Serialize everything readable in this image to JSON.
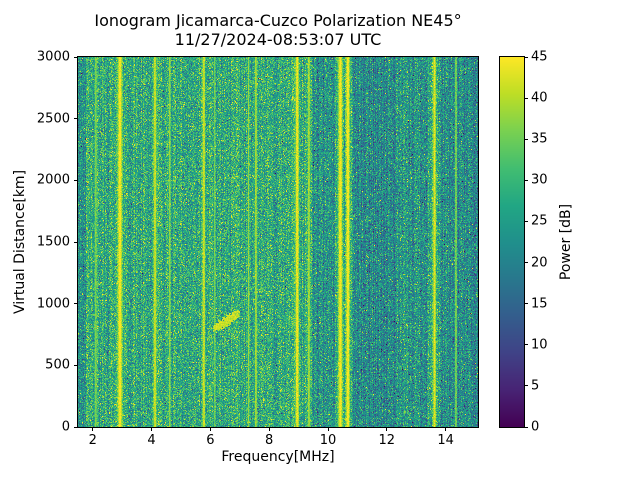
{
  "title": "Ionogram Jicamarca-Cuzco Polarization NE45°",
  "subtitle": "11/27/2024-08:53:07 UTC",
  "chart_data": {
    "type": "heatmap",
    "title": "Ionogram Jicamarca-Cuzco Polarization NE45°",
    "subtitle": "11/27/2024-08:53:07 UTC",
    "xlabel": "Frequency[MHz]",
    "ylabel": "Virtual Distance[km]",
    "colorbar_label": "Power [dB]",
    "xlim": [
      1.5,
      15.1
    ],
    "ylim": [
      0,
      3000
    ],
    "clim": [
      0,
      45
    ],
    "xticks": [
      2,
      4,
      6,
      8,
      10,
      12,
      14
    ],
    "yticks": [
      0,
      500,
      1000,
      1500,
      2000,
      2500,
      3000
    ],
    "colorbar_ticks": [
      0,
      5,
      10,
      15,
      20,
      25,
      30,
      35,
      40,
      45
    ],
    "colormap": "viridis",
    "colormap_rgb": [
      [
        68,
        1,
        84
      ],
      [
        72,
        36,
        117
      ],
      [
        64,
        67,
        135
      ],
      [
        52,
        94,
        141
      ],
      [
        41,
        120,
        142
      ],
      [
        32,
        144,
        140
      ],
      [
        34,
        167,
        132
      ],
      [
        66,
        190,
        113
      ],
      [
        121,
        209,
        81
      ],
      [
        189,
        222,
        38
      ],
      [
        253,
        231,
        37
      ]
    ],
    "noise": {
      "base_mean": 27.5,
      "pixel_std": 5.5,
      "column_jitter": 3.5,
      "bright_speckle_prob": 0.02,
      "dark_speckle_prob": 0.015,
      "seed": 42
    },
    "rfi_stripes": [
      {
        "freq": 2.1,
        "sigma": 0.03,
        "power": 36
      },
      {
        "freq": 2.93,
        "sigma": 0.06,
        "power": 45
      },
      {
        "freq": 4.12,
        "sigma": 0.04,
        "power": 42
      },
      {
        "freq": 4.62,
        "sigma": 0.025,
        "power": 38
      },
      {
        "freq": 5.78,
        "sigma": 0.035,
        "power": 42
      },
      {
        "freq": 6.15,
        "sigma": 0.02,
        "power": 36
      },
      {
        "freq": 7.3,
        "sigma": 0.02,
        "power": 38
      },
      {
        "freq": 7.55,
        "sigma": 0.03,
        "power": 40
      },
      {
        "freq": 8.95,
        "sigma": 0.05,
        "power": 44
      },
      {
        "freq": 9.35,
        "sigma": 0.03,
        "power": 40
      },
      {
        "freq": 10.42,
        "sigma": 0.06,
        "power": 45
      },
      {
        "freq": 10.68,
        "sigma": 0.05,
        "power": 45
      },
      {
        "freq": 13.62,
        "sigma": 0.04,
        "power": 43
      },
      {
        "freq": 14.35,
        "sigma": 0.025,
        "power": 38
      }
    ],
    "dark_bands": [
      {
        "f0": 1.5,
        "f1": 1.78,
        "delta": -3
      },
      {
        "f0": 9.5,
        "f1": 10.25,
        "delta": -5
      },
      {
        "f0": 10.85,
        "f1": 12.3,
        "delta": -6
      },
      {
        "f0": 12.3,
        "f1": 13.35,
        "delta": -4
      },
      {
        "f0": 13.85,
        "f1": 15.12,
        "delta": -6
      }
    ],
    "echo_trace": {
      "f0": 6.05,
      "f1": 6.95,
      "d0": 800,
      "d1": 925,
      "thickness_km": 45,
      "power": 44,
      "density": 0.8
    }
  }
}
